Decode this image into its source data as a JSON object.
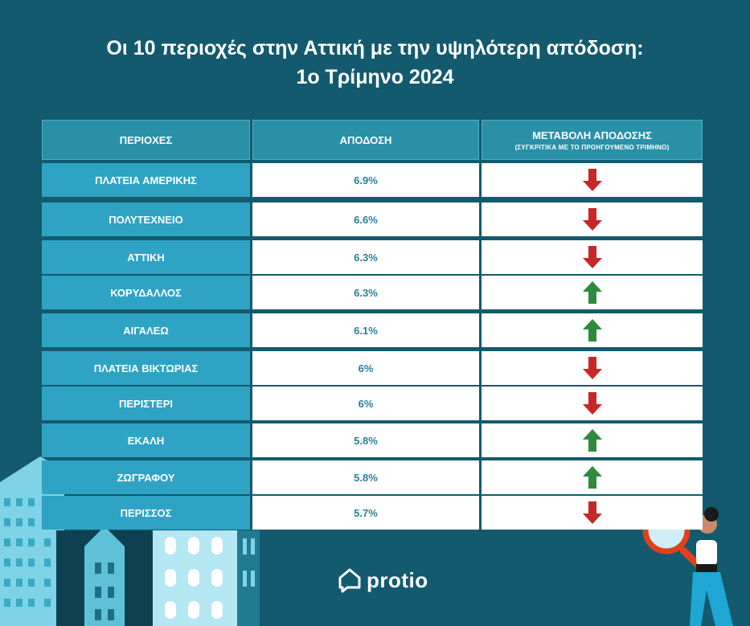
{
  "title": {
    "line1": "Οι 10 περιοχές στην Αττική με την υψηλότερη απόδοση:",
    "line2": "1ο Τρίμηνο 2024"
  },
  "table": {
    "headers": {
      "region": "ΠΕΡΙΟΧΕΣ",
      "yield": "ΑΠΟΔΟΣΗ",
      "change": "ΜΕΤΑΒΟΛΗ ΑΠΟΔΟΣΗΣ",
      "change_note": "(ΣΥΓΚΡΙΤΙΚΑ ΜΕ ΤΟ ΠΡΟΗΓΟΥΜΕΝΟ ΤΡΙΜΗΝΟ)"
    },
    "rows": [
      {
        "region": "ΠΛΑΤΕΙΑ ΑΜΕΡΙΚΗΣ",
        "yield": "6.9%",
        "trend": "down"
      },
      {
        "region": "ΠΟΛΥΤΕΧΝΕΙΟ",
        "yield": "6.6%",
        "trend": "down"
      },
      {
        "region": "ΑΤΤΙΚΗ",
        "yield": "6.3%",
        "trend": "down"
      },
      {
        "region": "ΚΟΡΥΔΑΛΛΟΣ",
        "yield": "6.3%",
        "trend": "up"
      },
      {
        "region": "ΑΙΓΑΛΕΩ",
        "yield": "6.1%",
        "trend": "up"
      },
      {
        "region": "ΠΛΑΤΕΙΑ ΒΙΚΤΩΡΙΑΣ",
        "yield": "6%",
        "trend": "down"
      },
      {
        "region": "ΠΕΡΙΣΤΕΡΙ",
        "yield": "6%",
        "trend": "down"
      },
      {
        "region": "ΕΚΑΛΗ",
        "yield": "5.8%",
        "trend": "up"
      },
      {
        "region": "ΖΩΓΡΑΦΟΥ",
        "yield": "5.8%",
        "trend": "up"
      },
      {
        "region": "ΠΕΡΙΣΣΟΣ",
        "yield": "5.7%",
        "trend": "down"
      }
    ]
  },
  "colors": {
    "background": "#135a6e",
    "up": "#2e8b3e",
    "down": "#c62828"
  },
  "logo": {
    "text": "protio"
  }
}
